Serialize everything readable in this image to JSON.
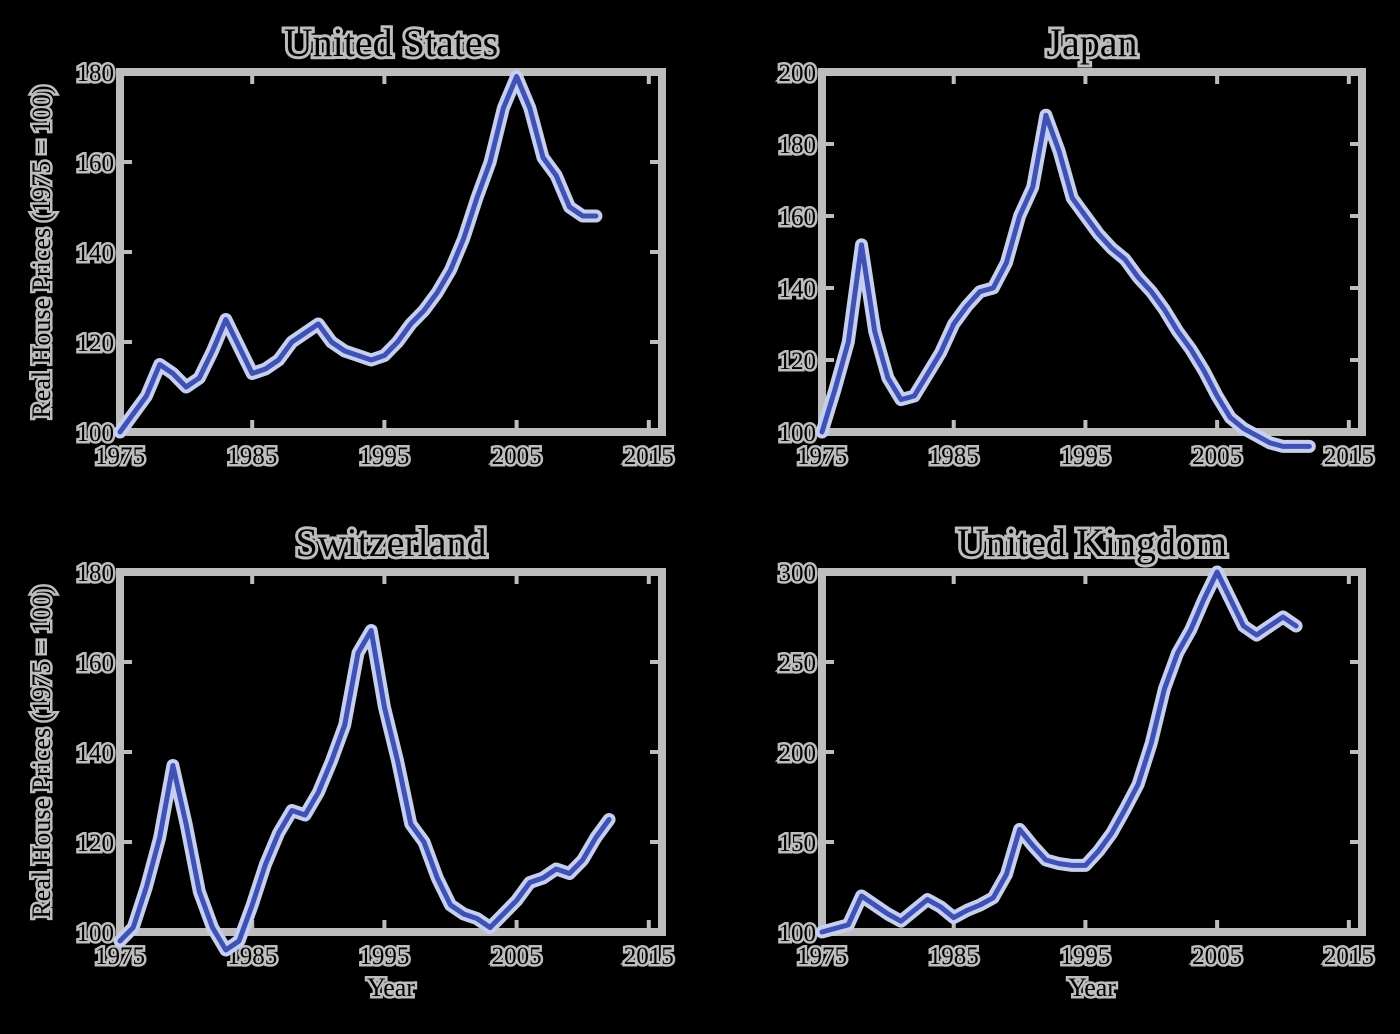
{
  "chart_data": [
    {
      "type": "line",
      "title": "United States",
      "ylabel": "Real House Prices (1975 = 100)",
      "xlabel": "",
      "xlim": [
        1975,
        2016
      ],
      "ylim": [
        100,
        180
      ],
      "xticks": [
        1975,
        1985,
        1995,
        2005,
        2015
      ],
      "xtick_labels": [
        "1975",
        "1985",
        "1995",
        "2005",
        "2015"
      ],
      "yticks": [
        100,
        120,
        140,
        160,
        180
      ],
      "ytick_labels": [
        "100",
        "120",
        "140",
        "160",
        "180"
      ],
      "grid": false,
      "series": [
        {
          "x": [
            1975,
            1976,
            1977,
            1978,
            1979,
            1980,
            1981,
            1982,
            1983,
            1984,
            1985,
            1986,
            1987,
            1988,
            1989,
            1990,
            1991,
            1992,
            1993,
            1994,
            1995,
            1996,
            1997,
            1998,
            1999,
            2000,
            2001,
            2002,
            2003,
            2004,
            2005,
            2006,
            2007,
            2008,
            2009,
            2010,
            2011
          ],
          "y": [
            100,
            104,
            108,
            115,
            113,
            110,
            112,
            118,
            125,
            119,
            113,
            114,
            116,
            120,
            122,
            124,
            120,
            118,
            117,
            116,
            117,
            120,
            124,
            127,
            131,
            136,
            143,
            152,
            160,
            172,
            179,
            172,
            161,
            157,
            150,
            148,
            148
          ]
        }
      ]
    },
    {
      "type": "line",
      "title": "Japan",
      "ylabel": "",
      "xlabel": "",
      "xlim": [
        1975,
        2016
      ],
      "ylim": [
        100,
        200
      ],
      "xticks": [
        1975,
        1985,
        1995,
        2005,
        2015
      ],
      "xtick_labels": [
        "1975",
        "1985",
        "1995",
        "2005",
        "2015"
      ],
      "yticks": [
        100,
        120,
        140,
        160,
        180,
        200
      ],
      "ytick_labels": [
        "100",
        "120",
        "140",
        "160",
        "180",
        "200"
      ],
      "grid": false,
      "series": [
        {
          "x": [
            1975,
            1976,
            1977,
            1978,
            1979,
            1980,
            1981,
            1982,
            1983,
            1984,
            1985,
            1986,
            1987,
            1988,
            1989,
            1990,
            1991,
            1992,
            1993,
            1994,
            1995,
            1996,
            1997,
            1998,
            1999,
            2000,
            2001,
            2002,
            2003,
            2004,
            2005,
            2006,
            2007,
            2008,
            2009,
            2010,
            2011,
            2012
          ],
          "y": [
            100,
            112,
            125,
            152,
            128,
            115,
            109,
            110,
            116,
            122,
            130,
            135,
            139,
            140,
            147,
            160,
            168,
            188,
            178,
            165,
            160,
            155,
            151,
            148,
            143,
            139,
            134,
            128,
            123,
            117,
            110,
            104,
            101,
            99,
            97,
            96,
            96,
            96
          ]
        }
      ]
    },
    {
      "type": "line",
      "title": "Switzerland",
      "ylabel": "Real House Prices (1975 = 100)",
      "xlabel": "Year",
      "xlim": [
        1975,
        2016
      ],
      "ylim": [
        100,
        180
      ],
      "xticks": [
        1975,
        1985,
        1995,
        2005,
        2015
      ],
      "xtick_labels": [
        "1975",
        "1985",
        "1995",
        "2005",
        "2015"
      ],
      "yticks": [
        100,
        120,
        140,
        160,
        180
      ],
      "ytick_labels": [
        "100",
        "120",
        "140",
        "160",
        "180"
      ],
      "grid": false,
      "series": [
        {
          "x": [
            1975,
            1976,
            1977,
            1978,
            1979,
            1980,
            1981,
            1982,
            1983,
            1984,
            1985,
            1986,
            1987,
            1988,
            1989,
            1990,
            1991,
            1992,
            1993,
            1994,
            1995,
            1996,
            1997,
            1998,
            1999,
            2000,
            2001,
            2002,
            2003,
            2004,
            2005,
            2006,
            2007,
            2008,
            2009,
            2010,
            2011,
            2012
          ],
          "y": [
            98,
            101,
            110,
            121,
            137,
            124,
            109,
            101,
            96,
            98,
            106,
            115,
            122,
            127,
            126,
            131,
            138,
            146,
            162,
            167,
            150,
            138,
            124,
            120,
            112,
            106,
            104,
            103,
            101,
            104,
            107,
            111,
            112,
            114,
            113,
            116,
            121,
            125
          ]
        }
      ]
    },
    {
      "type": "line",
      "title": "United Kingdom",
      "ylabel": "",
      "xlabel": "Year",
      "xlim": [
        1975,
        2016
      ],
      "ylim": [
        100,
        300
      ],
      "xticks": [
        1975,
        1985,
        1995,
        2005,
        2015
      ],
      "xtick_labels": [
        "1975",
        "1985",
        "1995",
        "2005",
        "2015"
      ],
      "yticks": [
        100,
        150,
        200,
        250,
        300
      ],
      "ytick_labels": [
        "100",
        "150",
        "200",
        "250",
        "300"
      ],
      "grid": false,
      "series": [
        {
          "x": [
            1975,
            1976,
            1977,
            1978,
            1979,
            1980,
            1981,
            1982,
            1983,
            1984,
            1985,
            1986,
            1987,
            1988,
            1989,
            1990,
            1991,
            1992,
            1993,
            1994,
            1995,
            1996,
            1997,
            1998,
            1999,
            2000,
            2001,
            2002,
            2003,
            2004,
            2005,
            2006,
            2007,
            2008,
            2009,
            2010,
            2011
          ],
          "y": [
            100,
            102,
            104,
            120,
            115,
            110,
            106,
            112,
            118,
            114,
            108,
            112,
            115,
            119,
            132,
            157,
            148,
            140,
            138,
            137,
            137,
            145,
            155,
            168,
            182,
            205,
            235,
            255,
            268,
            285,
            300,
            285,
            270,
            265,
            270,
            275,
            270
          ]
        }
      ]
    }
  ]
}
